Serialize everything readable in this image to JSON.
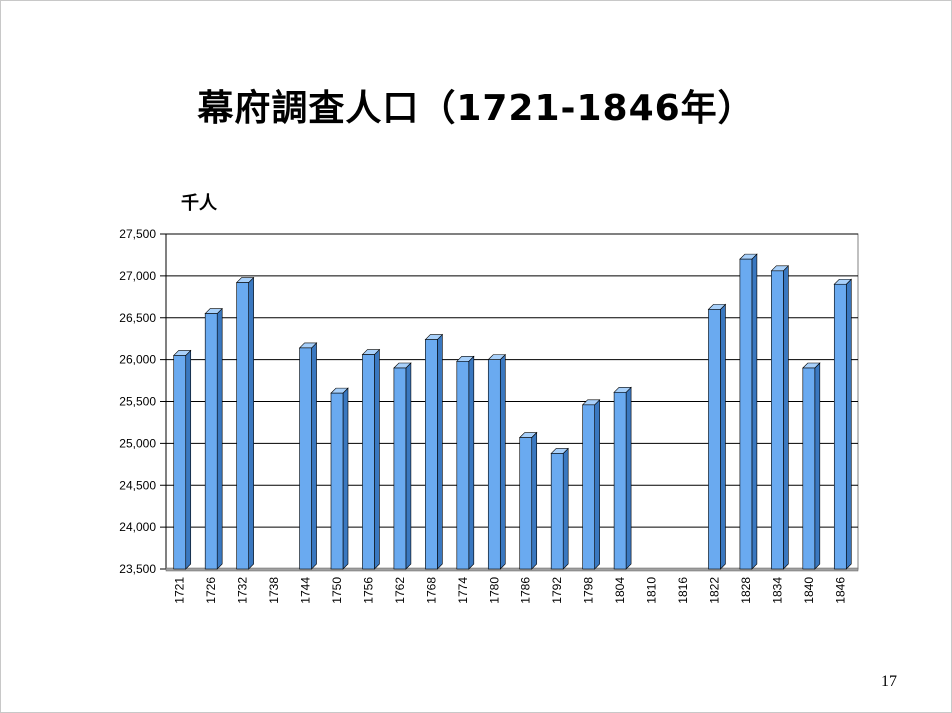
{
  "slide": {
    "title": "幕府調査人口（1721-1846年）",
    "unit_label": "千人",
    "page_number": "17"
  },
  "colors": {
    "bar_front": "#6aaaf0",
    "bar_top": "#a8d0fa",
    "bar_side": "#3a78c0",
    "grid": "#000000",
    "floor": "#a0a0a0"
  },
  "chart_data": {
    "type": "bar",
    "title": "幕府調査人口（1721-1846年）",
    "ylabel": "千人",
    "xlabel": "",
    "ylim": [
      23500,
      27500
    ],
    "yticks": [
      23500,
      24000,
      24500,
      25000,
      25500,
      26000,
      26500,
      27000,
      27500
    ],
    "ytick_labels": [
      "23,500",
      "24,000",
      "24,500",
      "25,000",
      "25,500",
      "26,000",
      "26,500",
      "27,000",
      "27,500"
    ],
    "grid": true,
    "categories": [
      "1721",
      "1726",
      "1732",
      "1738",
      "1744",
      "1750",
      "1756",
      "1762",
      "1768",
      "1774",
      "1780",
      "1786",
      "1792",
      "1798",
      "1804",
      "1810",
      "1816",
      "1822",
      "1828",
      "1834",
      "1840",
      "1846"
    ],
    "values": [
      26050,
      26550,
      26920,
      null,
      26140,
      25600,
      26060,
      25900,
      26240,
      25980,
      26000,
      25070,
      24880,
      25460,
      25610,
      null,
      null,
      26600,
      27200,
      27060,
      25900,
      26900
    ]
  }
}
